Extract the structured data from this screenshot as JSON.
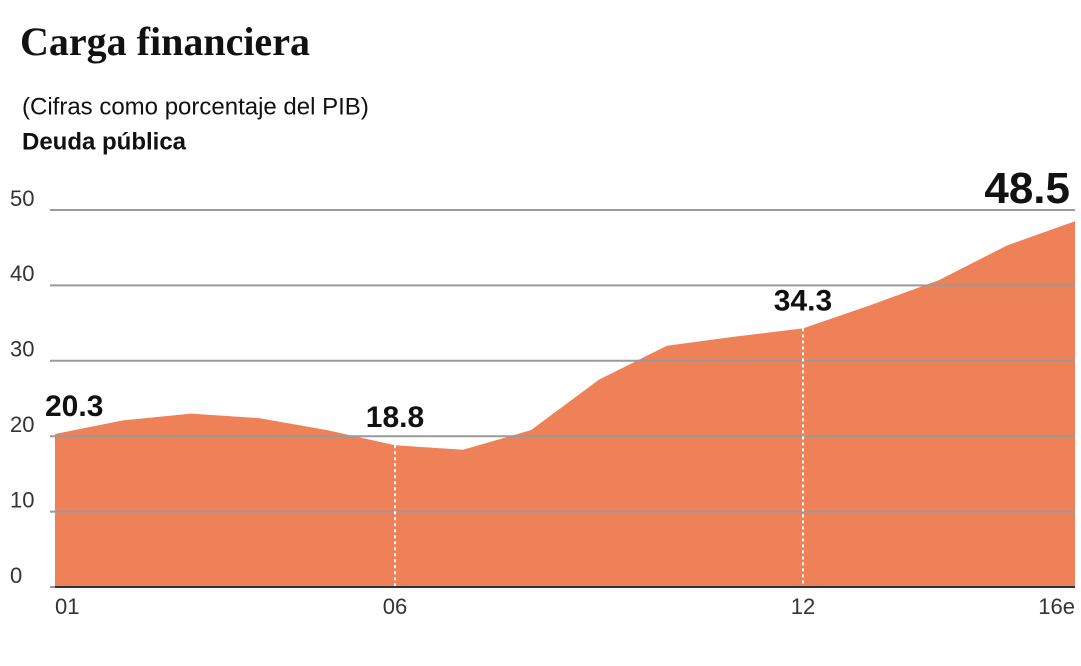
{
  "chart_data": {
    "type": "area",
    "title": "Carga financiera",
    "subtitle": "(Cifras como porcentaje del PIB)",
    "series_label": "Deuda pública",
    "categories": [
      "01",
      null,
      null,
      null,
      null,
      "06",
      null,
      null,
      null,
      null,
      null,
      "12",
      null,
      null,
      null,
      "16e"
    ],
    "values": [
      20.3,
      22.1,
      23.0,
      22.4,
      20.8,
      18.8,
      18.2,
      20.8,
      27.5,
      32.0,
      33.2,
      34.3,
      37.4,
      40.7,
      45.3,
      48.5
    ],
    "value_labels": [
      "20.3",
      null,
      null,
      null,
      null,
      "18.8",
      null,
      null,
      null,
      null,
      null,
      "34.3",
      null,
      null,
      null,
      "48.5"
    ],
    "color": "#ef8159",
    "ylim": [
      0,
      50
    ],
    "yticks": [
      0,
      10,
      20,
      30,
      40,
      50
    ],
    "grid": true
  }
}
